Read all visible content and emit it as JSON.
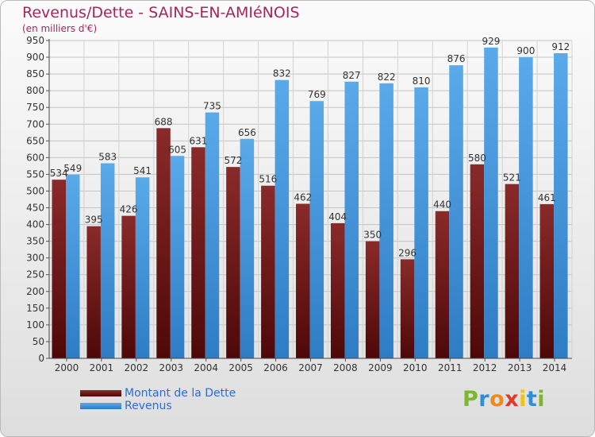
{
  "chart_data": {
    "type": "bar",
    "title": "Revenus/Dette - SAINS-EN-AMIéNOIS",
    "subtitle": "(en milliers d'€)",
    "categories": [
      "2000",
      "2001",
      "2002",
      "2003",
      "2004",
      "2005",
      "2006",
      "2007",
      "2008",
      "2009",
      "2010",
      "2011",
      "2012",
      "2013",
      "2014"
    ],
    "series": [
      {
        "name": "Montant de la Dette",
        "color": "#7a1e1e",
        "values": [
          534,
          395,
          426,
          688,
          631,
          572,
          516,
          462,
          404,
          350,
          296,
          440,
          580,
          521,
          461
        ],
        "labels": [
          "534",
          "395",
          "426",
          "688",
          "631",
          "572",
          "516",
          "462",
          "404",
          "350",
          "296",
          "440",
          "580",
          "521",
          "461"
        ]
      },
      {
        "name": "Revenus",
        "color": "#4a9fe6",
        "values": [
          549,
          583,
          541,
          605,
          735,
          656,
          832,
          769,
          827,
          822,
          810,
          876,
          929,
          900,
          912
        ],
        "labels": [
          "549",
          "583",
          "541",
          "605",
          "735",
          "656",
          "832",
          "769",
          "827",
          "822",
          "810",
          "876",
          "929",
          "900",
          "912"
        ]
      }
    ],
    "ylim": [
      0,
      950
    ],
    "yticks": [
      0,
      50,
      100,
      150,
      200,
      250,
      300,
      350,
      400,
      450,
      500,
      550,
      600,
      650,
      700,
      750,
      800,
      850,
      900,
      950
    ],
    "grid": true,
    "legend": "bottom-left"
  },
  "logo": {
    "letters": [
      "P",
      "r",
      "o",
      "x",
      "i",
      "t",
      "i"
    ],
    "colors": [
      "#7ab82d",
      "#2e8fd8",
      "#f08a1c",
      "#e03a2a",
      "#f0c21c",
      "#2e8fd8",
      "#7ab82d"
    ]
  }
}
